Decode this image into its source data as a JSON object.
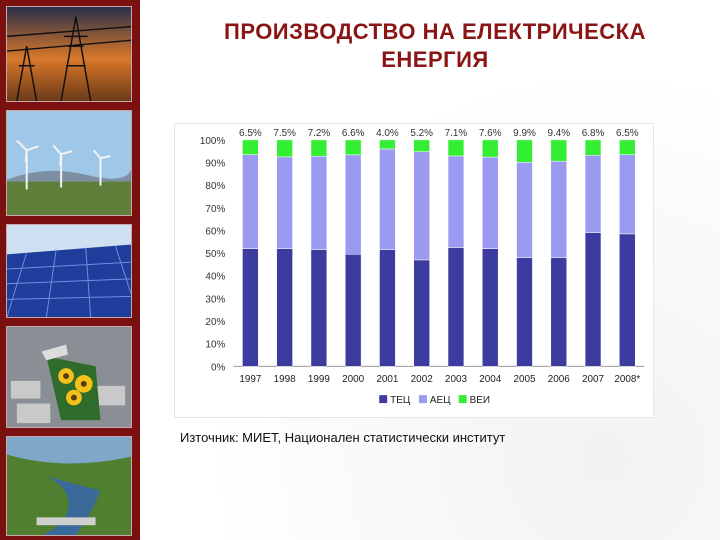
{
  "title": {
    "line1": "ПРОИЗВОДСТВО НА ЕЛЕКТРИЧЕСКА",
    "line2": "ЕНЕРГИЯ"
  },
  "source": "Източник: МИЕТ, Национален статистически институт",
  "colors": {
    "band": "#7a1010",
    "title": "#8b1414",
    "tec": "#3b3ba0",
    "aec": "#9a9af0",
    "vei": "#33ee33"
  },
  "chart_data": {
    "type": "bar",
    "stacked": true,
    "categories": [
      "1997",
      "1998",
      "1999",
      "2000",
      "2001",
      "2002",
      "2003",
      "2004",
      "2005",
      "2006",
      "2007",
      "2008*"
    ],
    "series": [
      {
        "name": "ТЕЦ",
        "values": [
          52,
          52,
          51.5,
          49.5,
          51.5,
          47,
          52.5,
          52,
          48,
          48,
          59,
          58.5
        ]
      },
      {
        "name": "АЕЦ",
        "values": [
          41.5,
          40.5,
          41.3,
          43.9,
          44.5,
          47.8,
          40.4,
          40.4,
          42.1,
          42.6,
          34.2,
          35
        ]
      },
      {
        "name": "ВЕИ",
        "values": [
          6.5,
          7.5,
          7.2,
          6.6,
          4.0,
          5.2,
          7.1,
          7.6,
          9.9,
          9.4,
          6.8,
          6.5
        ]
      }
    ],
    "top_labels": [
      "6.5%",
      "7.5%",
      "7.2%",
      "6.6%",
      "4.0%",
      "5.2%",
      "7.1%",
      "7.6%",
      "9.9%",
      "9.4%",
      "6.8%",
      "6.5%"
    ],
    "yticks": [
      "0%",
      "10%",
      "20%",
      "30%",
      "40%",
      "50%",
      "60%",
      "70%",
      "80%",
      "90%",
      "100%"
    ],
    "ylim": [
      0,
      100
    ],
    "legend_position": "bottom"
  }
}
